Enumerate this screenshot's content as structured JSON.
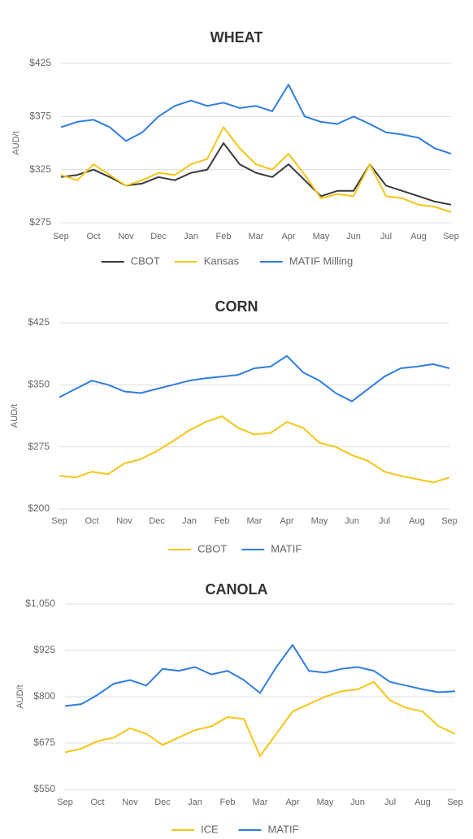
{
  "chart_data": [
    {
      "type": "line",
      "title": "WHEAT",
      "y_label": "AUD/t",
      "categories": [
        "Sep",
        null,
        "Oct",
        null,
        "Nov",
        null,
        "Dec",
        null,
        "Jan",
        null,
        "Feb",
        null,
        "Mar",
        null,
        "Apr",
        null,
        "May",
        null,
        "Jun",
        null,
        "Jul",
        null,
        "Aug",
        null,
        "Sep"
      ],
      "series": [
        {
          "name": "CBOT",
          "color": "#3a3a3a",
          "values": [
            318,
            320,
            325,
            318,
            310,
            312,
            318,
            315,
            322,
            325,
            350,
            330,
            322,
            318,
            330,
            315,
            300,
            305,
            305,
            330,
            310,
            305,
            300,
            295,
            292
          ]
        },
        {
          "name": "Kansas",
          "color": "#f5c518",
          "values": [
            320,
            315,
            330,
            320,
            310,
            315,
            322,
            320,
            330,
            335,
            365,
            345,
            330,
            325,
            340,
            320,
            298,
            302,
            300,
            330,
            300,
            298,
            292,
            290,
            285
          ]
        },
        {
          "name": "MATIF Milling",
          "color": "#2f7de1",
          "values": [
            365,
            370,
            372,
            365,
            352,
            360,
            375,
            385,
            390,
            385,
            388,
            383,
            385,
            380,
            405,
            375,
            370,
            368,
            375,
            368,
            360,
            358,
            355,
            345,
            340
          ]
        }
      ],
      "ylim": [
        275,
        425
      ],
      "yticks": [
        {
          "value": 275,
          "label": "$275"
        },
        {
          "value": 325,
          "label": "$325"
        },
        {
          "value": 375,
          "label": "$375"
        },
        {
          "value": 425,
          "label": "$425"
        }
      ],
      "grid": true,
      "legend": "bottom"
    },
    {
      "type": "line",
      "title": "CORN",
      "y_label": "AUD/t",
      "categories": [
        "Sep",
        null,
        "Oct",
        null,
        "Nov",
        null,
        "Dec",
        null,
        "Jan",
        null,
        "Feb",
        null,
        "Mar",
        null,
        "Apr",
        null,
        "May",
        null,
        "Jun",
        null,
        "Jul",
        null,
        "Aug",
        null,
        "Sep"
      ],
      "series": [
        {
          "name": "CBOT",
          "color": "#f5c518",
          "values": [
            240,
            238,
            245,
            242,
            255,
            260,
            270,
            282,
            295,
            305,
            312,
            298,
            290,
            292,
            305,
            298,
            280,
            275,
            265,
            258,
            245,
            240,
            236,
            232,
            238
          ]
        },
        {
          "name": "MATIF",
          "color": "#2f7de1",
          "values": [
            335,
            345,
            355,
            350,
            342,
            340,
            345,
            350,
            355,
            358,
            360,
            362,
            370,
            372,
            385,
            365,
            355,
            340,
            330,
            345,
            360,
            370,
            372,
            375,
            370
          ]
        }
      ],
      "ylim": [
        200,
        425
      ],
      "yticks": [
        {
          "value": 200,
          "label": "$200"
        },
        {
          "value": 275,
          "label": "$275"
        },
        {
          "value": 350,
          "label": "$350"
        },
        {
          "value": 425,
          "label": "$425"
        }
      ],
      "grid": true,
      "legend": "bottom"
    },
    {
      "type": "line",
      "title": "CANOLA",
      "y_label": "AUD/t",
      "categories": [
        "Sep",
        null,
        "Oct",
        null,
        "Nov",
        null,
        "Dec",
        null,
        "Jan",
        null,
        "Feb",
        null,
        "Mar",
        null,
        "Apr",
        null,
        "May",
        null,
        "Jun",
        null,
        "Jul",
        null,
        "Aug",
        null,
        "Sep"
      ],
      "series": [
        {
          "name": "ICE",
          "color": "#f5c518",
          "values": [
            650,
            660,
            680,
            690,
            715,
            700,
            670,
            690,
            710,
            720,
            745,
            740,
            640,
            700,
            760,
            780,
            800,
            815,
            820,
            840,
            790,
            770,
            760,
            720,
            700
          ]
        },
        {
          "name": "MATIF",
          "color": "#2f7de1",
          "values": [
            775,
            780,
            805,
            835,
            845,
            830,
            875,
            870,
            880,
            860,
            870,
            845,
            810,
            880,
            940,
            870,
            865,
            875,
            880,
            870,
            840,
            830,
            820,
            812,
            815
          ]
        }
      ],
      "ylim": [
        550,
        1050
      ],
      "yticks": [
        {
          "value": 550,
          "label": "$550"
        },
        {
          "value": 675,
          "label": "$675"
        },
        {
          "value": 800,
          "label": "$800"
        },
        {
          "value": 925,
          "label": "$925"
        },
        {
          "value": 1050,
          "label": "$1,050"
        }
      ],
      "grid": true,
      "legend": "bottom"
    }
  ]
}
